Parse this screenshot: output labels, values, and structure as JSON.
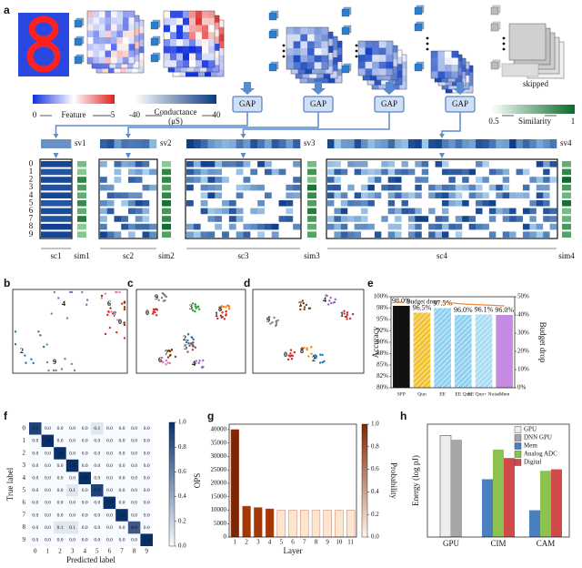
{
  "panel_labels": [
    "a",
    "b",
    "c",
    "d",
    "e",
    "f",
    "g",
    "h"
  ],
  "diagram": {
    "feature_legend": {
      "min": "0",
      "label": "Feature",
      "max": "5"
    },
    "conductance_legend": {
      "min": "-40",
      "label": "Conductance",
      "unit": "(μS)",
      "max": "40"
    },
    "gap_labels": [
      "GAP",
      "GAP",
      "GAP",
      "GAP"
    ],
    "skipped": "skipped",
    "similarity_legend": {
      "min": "0.5",
      "label": "Similarity",
      "max": "1"
    },
    "sv_labels": [
      "sv1",
      "sv2",
      "sv3",
      "sv4"
    ],
    "sc_labels": [
      "sc1",
      "sc2",
      "sc3",
      "sc4"
    ],
    "sim_labels": [
      "sim1",
      "sim2",
      "sim3",
      "sim4"
    ],
    "row_labels": [
      "0",
      "1",
      "2",
      "3",
      "4",
      "5",
      "6",
      "7",
      "8",
      "9"
    ]
  },
  "digit_colors": [
    "#d62728",
    "#d62728",
    "#1f77b4",
    "#2ca02c",
    "#9467bd",
    "#8c564b",
    "#e377c2",
    "#7f3f00",
    "#ff7f0e",
    "#7f7f7f"
  ],
  "embeddings": [
    {
      "labels": [
        "4",
        "6",
        "7",
        "0",
        "2",
        "9"
      ]
    },
    {
      "labels": [
        "9",
        "3",
        "8",
        "0",
        "1",
        "2",
        "5",
        "6",
        "7",
        "4"
      ]
    },
    {
      "labels": [
        "7",
        "4",
        "1",
        "9",
        "0",
        "8",
        "2"
      ]
    }
  ],
  "chart_data": [
    {
      "type": "bar_line",
      "categories": [
        "SFP",
        "Qun",
        "EE",
        "EE Qun",
        "EE Qun+ Noise",
        "Mem"
      ],
      "values": [
        98.0,
        96.5,
        97.5,
        96.0,
        96.1,
        96.0
      ],
      "value_labels": [
        "98.0%",
        "96.5%",
        "97.5%",
        "96.0%",
        "96.1%",
        "96.0%"
      ],
      "colors": [
        "#111111",
        "#f2c12e",
        "#8fd0f0",
        "#8fd0f0",
        "#a8dcf4",
        "#c48be0"
      ],
      "hatches": [
        false,
        true,
        true,
        true,
        true,
        false
      ],
      "ylabel": "Accuracy",
      "y2label": "Budget drop",
      "ylim": [
        80,
        100
      ],
      "yticks": [
        {
          "value": 80,
          "label": "80%"
        },
        {
          "value": 82.5,
          "label": "82%"
        },
        {
          "value": 85,
          "label": "85%"
        },
        {
          "value": 87.5,
          "label": "88%"
        },
        {
          "value": 90,
          "label": "90%"
        },
        {
          "value": 92.5,
          "label": "92%"
        },
        {
          "value": 95,
          "label": "95%"
        },
        {
          "value": 97.5,
          "label": "98%"
        },
        {
          "value": 100,
          "label": "100%"
        }
      ],
      "y2lim": [
        0,
        50
      ],
      "y2ticks": [
        {
          "value": 0,
          "label": "0%"
        },
        {
          "value": 10,
          "label": "10%"
        },
        {
          "value": 20,
          "label": "20%"
        },
        {
          "value": 30,
          "label": "30%"
        },
        {
          "value": 40,
          "label": "40%"
        },
        {
          "value": 50,
          "label": "50%"
        }
      ],
      "line": {
        "name": "Budget drop",
        "color": "#f08a30",
        "axis": "y2",
        "values": [
          null,
          null,
          47,
          46,
          45.5,
          45
        ]
      },
      "legend": "upper left"
    },
    {
      "type": "heatmap",
      "categories": [
        "0",
        "1",
        "2",
        "3",
        "4",
        "5",
        "6",
        "7",
        "8",
        "9"
      ],
      "row_categories": [
        "0",
        "1",
        "2",
        "3",
        "4",
        "5",
        "6",
        "7",
        "8",
        "9"
      ],
      "xlabel": "Predicted label",
      "ylabel": "True label",
      "values": [
        [
          0.9,
          0,
          0,
          0,
          0,
          0.1,
          0,
          0,
          0,
          0
        ],
        [
          0,
          1,
          0,
          0,
          0,
          0,
          0,
          0,
          0,
          0
        ],
        [
          0,
          0,
          1,
          0,
          0,
          0,
          0,
          0,
          0,
          0
        ],
        [
          0,
          0,
          0,
          1,
          0,
          0,
          0,
          0,
          0,
          0
        ],
        [
          0,
          0,
          0,
          0,
          1,
          0,
          0,
          0,
          0,
          0
        ],
        [
          0,
          0,
          0,
          0.1,
          0,
          0.9,
          0,
          0,
          0,
          0
        ],
        [
          0,
          0,
          0,
          0,
          0,
          0,
          1,
          0,
          0,
          0
        ],
        [
          0,
          0,
          0,
          0,
          0,
          0,
          0,
          1,
          0,
          0
        ],
        [
          0,
          0,
          0.1,
          0.1,
          0,
          0,
          0,
          0,
          0.8,
          0
        ],
        [
          0,
          0,
          0,
          0,
          0,
          0,
          0,
          0,
          0,
          1
        ]
      ],
      "value_labels": [
        [
          "0.9",
          "0.0",
          "0.0",
          "0.0",
          "0.0",
          "0.1",
          "0.0",
          "0.0",
          "0.0",
          "0.0"
        ],
        [
          "0.0",
          "1.0",
          "0.0",
          "0.0",
          "0.0",
          "0.0",
          "0.0",
          "0.0",
          "0.0",
          "0.0"
        ],
        [
          "0.0",
          "0.0",
          "1.0",
          "0.0",
          "0.0",
          "0.0",
          "0.0",
          "0.0",
          "0.0",
          "0.0"
        ],
        [
          "0.0",
          "0.0",
          "0.0",
          "1.0",
          "0.0",
          "0.0",
          "0.0",
          "0.0",
          "0.0",
          "0.0"
        ],
        [
          "0.0",
          "0.0",
          "0.0",
          "0.0",
          "1.0",
          "0.0",
          "0.0",
          "0.0",
          "0.0",
          "0.0"
        ],
        [
          "0.0",
          "0.0",
          "0.0",
          "0.1",
          "0.0",
          "0.9",
          "0.0",
          "0.0",
          "0.0",
          "0.0"
        ],
        [
          "0.0",
          "0.0",
          "0.0",
          "0.0",
          "0.0",
          "0.0",
          "1.0",
          "0.0",
          "0.0",
          "0.0"
        ],
        [
          "0.0",
          "0.0",
          "0.0",
          "0.0",
          "0.0",
          "0.0",
          "0.0",
          "1.0",
          "0.0",
          "0.0"
        ],
        [
          "0.0",
          "0.0",
          "0.1",
          "0.1",
          "0.0",
          "0.0",
          "0.0",
          "0.0",
          "0.8",
          "0.0"
        ],
        [
          "0.0",
          "0.0",
          "0.0",
          "0.0",
          "0.0",
          "0.0",
          "0.0",
          "0.0",
          "0.0",
          "1.0"
        ]
      ],
      "colormap": [
        "#f7fbff",
        "#08306b"
      ],
      "clim": [
        0,
        1
      ],
      "cticks": [
        {
          "value": 0,
          "label": "0.0"
        },
        {
          "value": 0.2,
          "label": "0.2"
        },
        {
          "value": 0.4,
          "label": "0.4"
        },
        {
          "value": 0.6,
          "label": "0.6"
        },
        {
          "value": 0.8,
          "label": "0.8"
        },
        {
          "value": 1,
          "label": "1.0"
        }
      ]
    },
    {
      "type": "bar",
      "categories": [
        "1",
        "2",
        "3",
        "4",
        "5",
        "6",
        "7",
        "8",
        "9",
        "10",
        "11"
      ],
      "values": [
        40000,
        11500,
        11000,
        10500,
        10000,
        10000,
        10000,
        10000,
        10000,
        10000,
        10000
      ],
      "colors": [
        "#7f2704",
        "#a63603",
        "#a63603",
        "#a63603",
        "#fde5cf",
        "#fde5cf",
        "#fde5cf",
        "#fde5cf",
        "#fde5cf",
        "#fde5cf",
        "#fde5cf"
      ],
      "xlabel": "Layer",
      "ylabel": "OPS",
      "ylim": [
        0,
        42000
      ],
      "yticks": [
        0,
        5000,
        10000,
        15000,
        20000,
        25000,
        30000,
        35000,
        40000
      ],
      "colormap": [
        "#fff5eb",
        "#7f2704"
      ],
      "clim": [
        0,
        1
      ],
      "colorbar_label": "Probability",
      "cticks": [
        {
          "value": 0,
          "label": "0.0"
        },
        {
          "value": 0.2,
          "label": "0.2"
        },
        {
          "value": 0.4,
          "label": "0.4"
        },
        {
          "value": 0.6,
          "label": "0.6"
        },
        {
          "value": 0.8,
          "label": "0.8"
        },
        {
          "value": 1,
          "label": "1.0"
        }
      ]
    },
    {
      "type": "grouped_bar",
      "categories": [
        "GPU",
        "CIM",
        "CAM"
      ],
      "ylabel": "Energy (log pJ)",
      "ylim": [
        0,
        8
      ],
      "series": [
        {
          "name": "GPU",
          "color": "#eeeeee",
          "values": [
            7.2,
            null,
            null
          ]
        },
        {
          "name": "DNN GPU",
          "color": "#a6a6a6",
          "values": [
            6.9,
            null,
            null
          ]
        },
        {
          "name": "Mem",
          "color": "#4a7fc0",
          "values": [
            null,
            4.1,
            1.9
          ]
        },
        {
          "name": "Analog ADC",
          "color": "#8cc34f",
          "values": [
            null,
            6.2,
            4.7
          ]
        },
        {
          "name": "Digital",
          "color": "#d04a4a",
          "values": [
            null,
            5.6,
            4.8
          ]
        }
      ],
      "legend": "upper right"
    }
  ]
}
